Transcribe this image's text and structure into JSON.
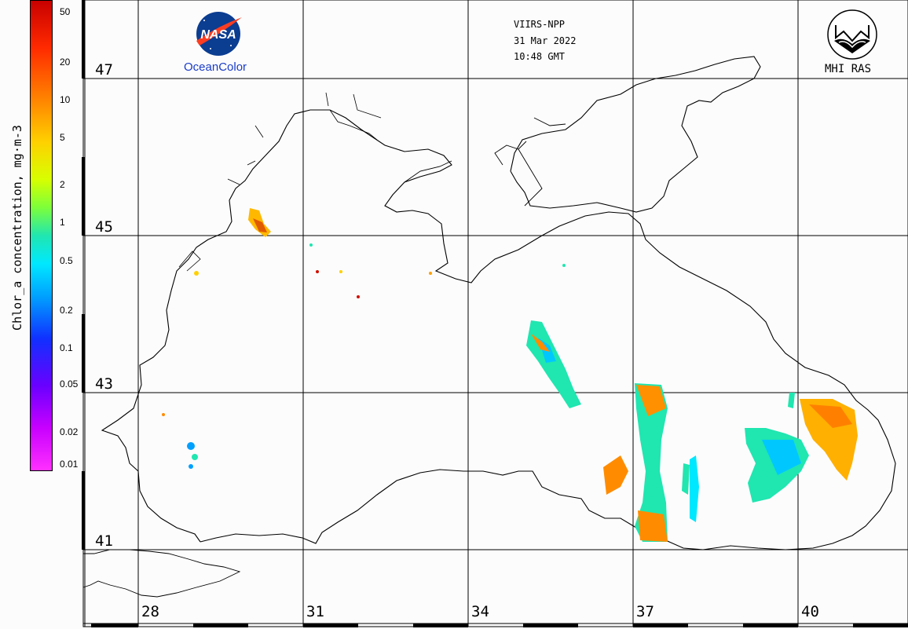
{
  "header": {
    "sensor": "VIIRS-NPP",
    "date": "31 Mar 2022",
    "time": "10:48 GMT"
  },
  "logos": {
    "left_name": "NASA",
    "left_caption": "OceanColor",
    "right_caption": "MHI RAS"
  },
  "colorbar": {
    "title": "Chlor_a concentration, mg·m-3",
    "ticks": [
      "50",
      "20",
      "10",
      "5",
      "2",
      "1",
      "0.5",
      "0.2",
      "0.1",
      "0.05",
      "0.02",
      "0.01"
    ],
    "colors": [
      "#c80000",
      "#ff8c00",
      "#ffd000",
      "#7dff3a",
      "#00e8ff",
      "#1030ff",
      "#c800ff",
      "#ff30ff"
    ]
  },
  "axes": {
    "latitudes": [
      "47",
      "45",
      "43",
      "41"
    ],
    "longitudes": [
      "28",
      "31",
      "34",
      "37",
      "40"
    ]
  },
  "colors": {
    "coastline": "#000000",
    "grid": "#000000",
    "background": "#fcfcfc"
  }
}
